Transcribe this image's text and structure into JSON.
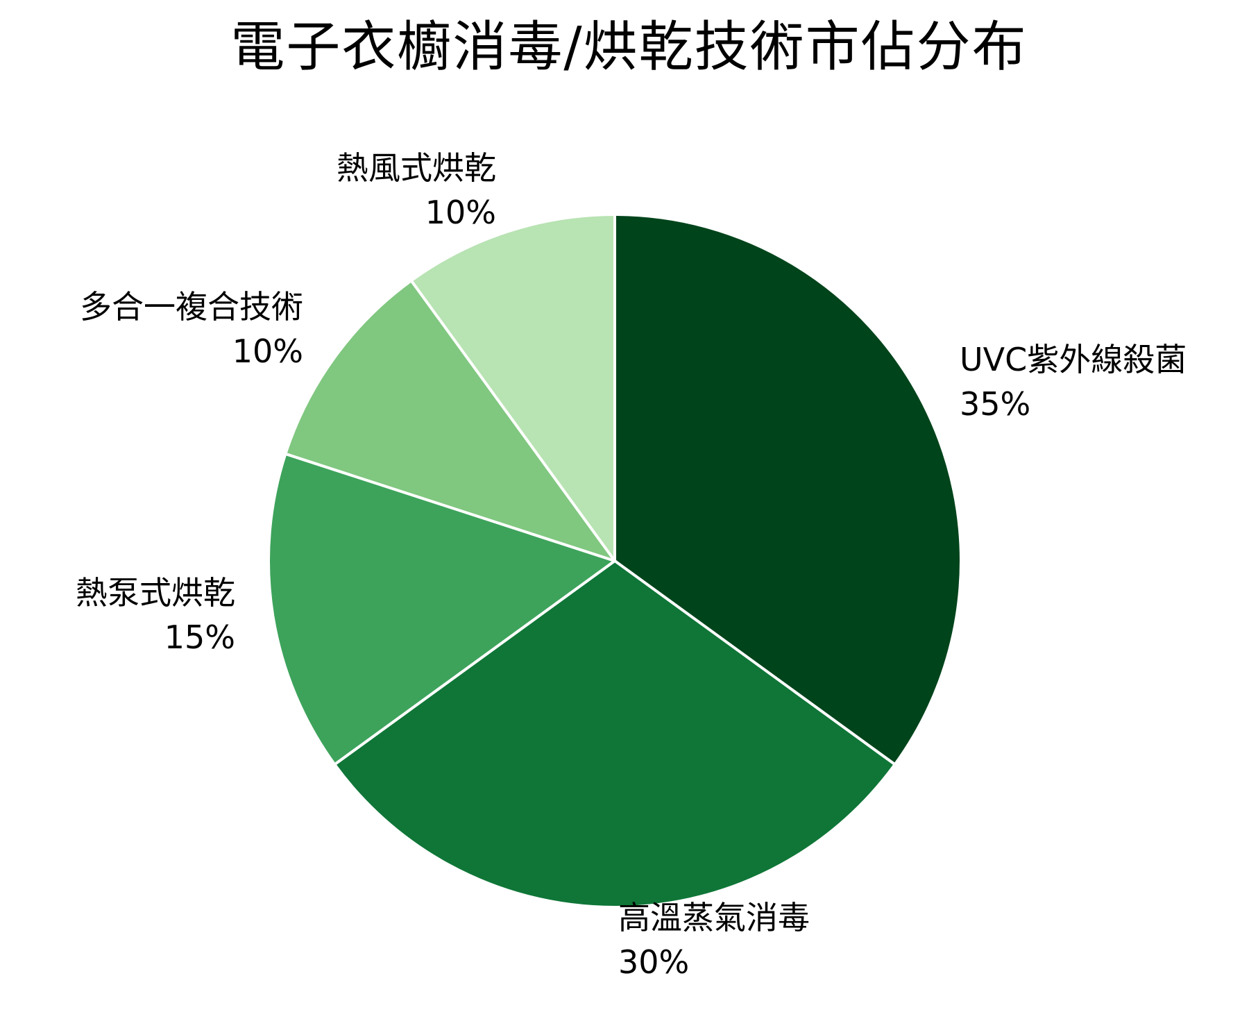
{
  "chart_data": {
    "type": "pie",
    "title": "電子衣櫥消毒/烘乾技術市佔分布",
    "start_angle": "12 o'clock, clockwise",
    "slices": [
      {
        "label": "UVC紫外線殺菌",
        "value": 35,
        "pct_label": "35%",
        "color": "#00441b"
      },
      {
        "label": "高溫蒸氣消毒",
        "value": 30,
        "pct_label": "30%",
        "color": "#0f7637"
      },
      {
        "label": "熱泵式烘乾",
        "value": 15,
        "pct_label": "15%",
        "color": "#3da35b"
      },
      {
        "label": "多合一複合技術",
        "value": 10,
        "pct_label": "10%",
        "color": "#80c780"
      },
      {
        "label": "熱風式烘乾",
        "value": 10,
        "pct_label": "10%",
        "color": "#b8e3b3"
      }
    ],
    "categories": [
      "UVC紫外線殺菌",
      "高溫蒸氣消毒",
      "熱泵式烘乾",
      "多合一複合技術",
      "熱風式烘乾"
    ],
    "values": [
      35,
      30,
      15,
      10,
      10
    ],
    "legend": "none (labels on slices)"
  }
}
